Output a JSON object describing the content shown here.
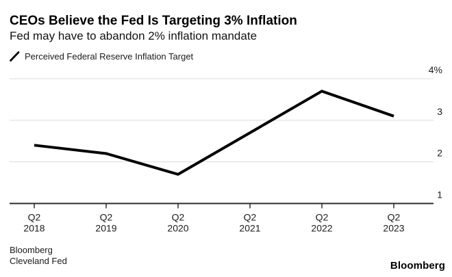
{
  "header": {
    "title": "CEOs Believe the Fed Is Targeting 3% Inflation",
    "subtitle": "Fed may have to abandon 2% inflation mandate"
  },
  "legend": {
    "label": "Perceived Federal Reserve Inflation Target"
  },
  "chart_data": {
    "type": "line",
    "title": "CEOs Believe the Fed Is Targeting 3% Inflation",
    "subtitle": "Fed may have to abandon 2% inflation mandate",
    "categories": [
      "Q2 2018",
      "Q2 2019",
      "Q2 2020",
      "Q2 2021",
      "Q2 2022",
      "Q2 2023"
    ],
    "series": [
      {
        "name": "Perceived Federal Reserve Inflation Target",
        "color": "#000000",
        "values": [
          2.4,
          2.2,
          1.7,
          2.7,
          3.7,
          3.1
        ]
      }
    ],
    "y_ticks": [
      1,
      2,
      3,
      4
    ],
    "y_tick_labels": [
      "1",
      "2",
      "3",
      "4%"
    ],
    "ylim": [
      1,
      4.4
    ],
    "unit": "%",
    "grid": "horizontal",
    "legend_position": "top-left"
  },
  "footer": {
    "source_line1": "Bloomberg",
    "source_line2": "Cleveland Fed",
    "brand": "Bloomberg"
  },
  "colors": {
    "series": "#000000",
    "grid": "#dcdcdc",
    "axis": "#2b2b2b",
    "tick_text": "#1a1a1a",
    "background": "#ffffff"
  }
}
